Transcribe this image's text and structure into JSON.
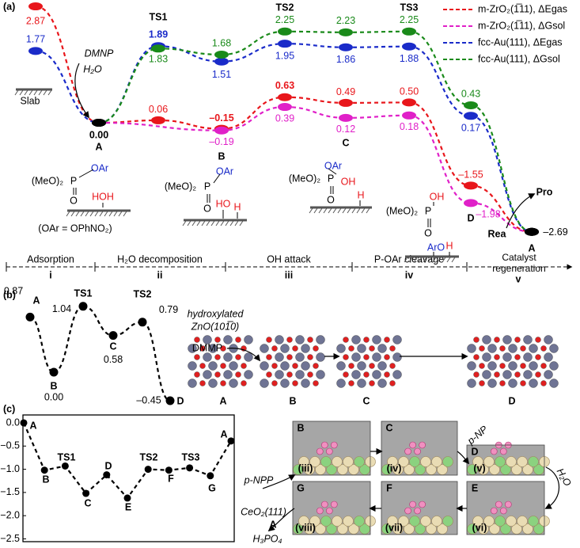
{
  "panel_labels": [
    "(a)",
    "(b)",
    "(c)"
  ],
  "chart_data": [
    {
      "type": "energy_profile",
      "categories": [
        null,
        "A",
        "TS1",
        "B",
        "TS2",
        "C",
        "TS3",
        "D",
        "A"
      ],
      "series": [
        {
          "name": "m-ZrO₂(1̅11), ΔEgas",
          "color": "#e8161b",
          "values": [
            2.87,
            0.0,
            0.06,
            -0.15,
            0.63,
            0.49,
            0.5,
            -1.55,
            -2.69
          ],
          "value_labels": [
            "2.87",
            null,
            "0.06",
            "–0.15",
            "0.63",
            "0.49",
            "0.50",
            "–1.55",
            null
          ]
        },
        {
          "name": "m-ZrO₂(1̅11), ΔGsol",
          "color": "#e020c8",
          "values": [
            null,
            0.0,
            null,
            -0.19,
            0.39,
            0.12,
            0.18,
            -1.98,
            -2.69
          ],
          "value_labels": [
            null,
            null,
            null,
            "–0.19",
            "0.39",
            "0.12",
            "0.18",
            "–1.98",
            null
          ]
        },
        {
          "name": "fcc-Au(111), ΔEgas",
          "color": "#1a2bc9",
          "values": [
            1.77,
            0.0,
            1.89,
            1.51,
            1.95,
            1.86,
            1.88,
            0.17,
            -2.69
          ],
          "value_labels": [
            "1.77",
            "0.00",
            "1.89",
            "1.51",
            "1.95",
            "1.86",
            "1.88",
            "0.17",
            "–2.69"
          ]
        },
        {
          "name": "fcc-Au(111), ΔGsol",
          "color": "#1a8a1a",
          "values": [
            null,
            0.0,
            1.83,
            1.68,
            2.25,
            2.23,
            2.25,
            0.43,
            -2.69
          ],
          "value_labels": [
            null,
            null,
            "1.83",
            "1.68",
            "2.25",
            "2.23",
            "2.25",
            "0.43",
            null
          ]
        }
      ],
      "phases": [
        {
          "name": "Adsorption",
          "numeral": "i"
        },
        {
          "name": "H₂O decomposition",
          "numeral": "ii"
        },
        {
          "name": "OH attack",
          "numeral": "iii"
        },
        {
          "name": "P-OAr cleavage",
          "numeral": "iv"
        },
        {
          "name": "Catalyst regeneration",
          "numeral": "v"
        }
      ],
      "annotations": [
        "DMNP",
        "H₂O",
        "Slab",
        "OAr",
        "(MeO)₂",
        "P",
        "O",
        "HOH",
        "(OAr = OPhNO₂)",
        "OAr",
        "(MeO)₂",
        "P",
        "O",
        "HO",
        "H",
        "OAr",
        "(MeO)₂",
        "P",
        "OH",
        "O",
        "H",
        "OH",
        "(MeO)₂",
        "P",
        "O",
        "ArO",
        "H",
        "Rea",
        "Pro"
      ]
    },
    {
      "type": "energy_profile",
      "categories": [
        "A",
        "B",
        "TS1",
        "C",
        "TS2",
        "D"
      ],
      "values": [
        0.87,
        0.0,
        1.04,
        0.58,
        0.79,
        -0.45
      ],
      "value_labels": [
        "0.87",
        "0.00",
        "1.04",
        "0.58",
        "0.79",
        "–0.45"
      ],
      "color": "#000000",
      "annotations": [
        "hydroxylated",
        "ZnO(101̅0)",
        "DMMP",
        "A",
        "B",
        "C",
        "D"
      ]
    },
    {
      "type": "line",
      "categories": [
        "A",
        "B",
        "TS1",
        "C",
        "D",
        "E",
        "TS2",
        "F",
        "TS3",
        "G",
        "A"
      ],
      "values": [
        0.0,
        -1.02,
        -0.93,
        -1.52,
        -1.12,
        -1.62,
        -1.0,
        -1.02,
        -0.97,
        -1.14,
        -0.39
      ],
      "color": "#000000",
      "ylim": [
        -2.56,
        0.17
      ],
      "yticks": [
        {
          "value": 0,
          "label": "0.0"
        },
        {
          "value": -0.5,
          "label": "−0.5"
        },
        {
          "value": -1.0,
          "label": "−1.0"
        },
        {
          "value": -1.5,
          "label": "−1.5"
        },
        {
          "value": -2.0,
          "label": "−2.0"
        },
        {
          "value": -2.5,
          "label": "−2.5"
        }
      ],
      "annotations": [
        "B",
        "(iii)",
        "C",
        "(iv)",
        "D",
        "(v)",
        "E",
        "(vi)",
        "F",
        "(vii)",
        "G",
        "(viii)",
        "p-NPP",
        "CeO₂(111)",
        "A",
        "H₃PO₄",
        "p-NP",
        "H₂O"
      ]
    }
  ]
}
